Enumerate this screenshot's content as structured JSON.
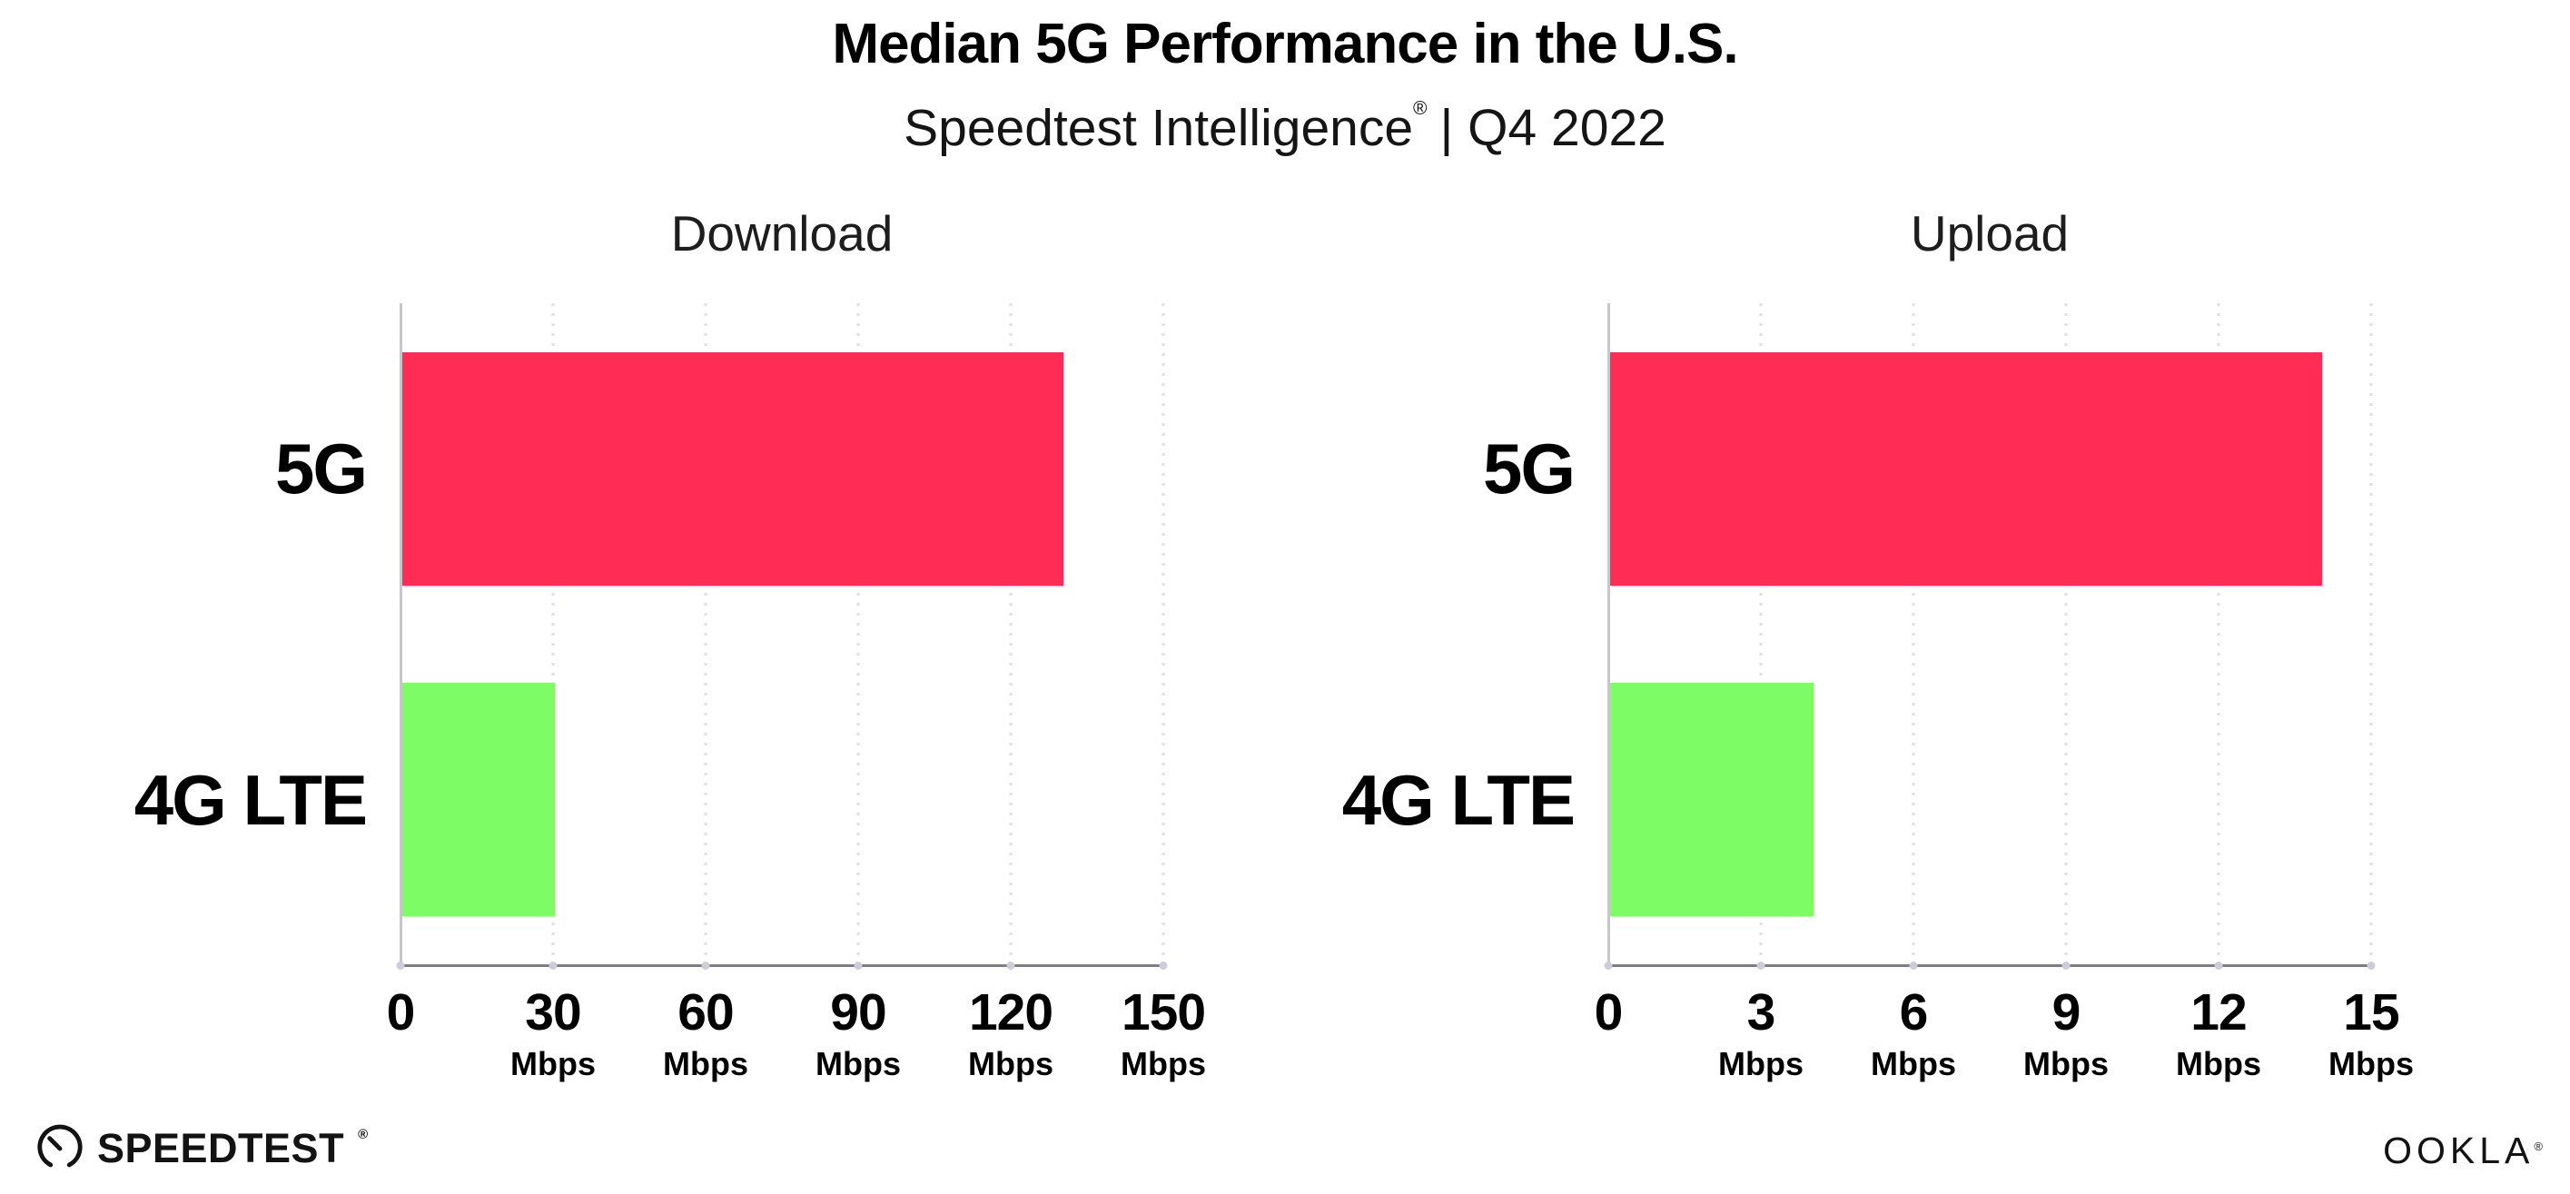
{
  "header": {
    "title": "Median 5G Performance in the U.S.",
    "subtitle": {
      "brand": "Speedtest Intelligence",
      "registered": "®",
      "rest": "| Q4 2022"
    }
  },
  "colors": {
    "bar_5g": "#FF2D55",
    "bar_4g_lte": "#7DFC66",
    "gridline": "#DEDEE8",
    "axis_line": "#7E7E82",
    "spine": "#C7C7CB",
    "axis_tick_dot": "#CCCCDA",
    "text": "#000000"
  },
  "chart_data": [
    {
      "type": "bar",
      "orientation": "horizontal",
      "title": "Download",
      "categories": [
        "5G",
        "4G LTE"
      ],
      "values": [
        130,
        30
      ],
      "unit": "Mbps",
      "xlim": [
        0,
        150
      ],
      "xticks": [
        {
          "value": 0,
          "label": "0",
          "unit": ""
        },
        {
          "value": 30,
          "label": "30",
          "unit": "Mbps"
        },
        {
          "value": 60,
          "label": "60",
          "unit": "Mbps"
        },
        {
          "value": 90,
          "label": "90",
          "unit": "Mbps"
        },
        {
          "value": 120,
          "label": "120",
          "unit": "Mbps"
        },
        {
          "value": 150,
          "label": "150",
          "unit": "Mbps"
        }
      ],
      "bar_colors": [
        "#FF2D55",
        "#7DFC66"
      ],
      "grid": "vertical-dotted",
      "legend": "none"
    },
    {
      "type": "bar",
      "orientation": "horizontal",
      "title": "Upload",
      "categories": [
        "5G",
        "4G LTE"
      ],
      "values": [
        14,
        4
      ],
      "unit": "Mbps",
      "xlim": [
        0,
        15
      ],
      "xticks": [
        {
          "value": 0,
          "label": "0",
          "unit": ""
        },
        {
          "value": 3,
          "label": "3",
          "unit": "Mbps"
        },
        {
          "value": 6,
          "label": "6",
          "unit": "Mbps"
        },
        {
          "value": 9,
          "label": "9",
          "unit": "Mbps"
        },
        {
          "value": 12,
          "label": "12",
          "unit": "Mbps"
        },
        {
          "value": 15,
          "label": "15",
          "unit": "Mbps"
        }
      ],
      "bar_colors": [
        "#FF2D55",
        "#7DFC66"
      ],
      "grid": "vertical-dotted",
      "legend": "none"
    }
  ],
  "footer": {
    "speedtest_label": "SPEEDTEST",
    "speedtest_mark": "®",
    "ookla_label": "OOKLA",
    "ookla_mark": "®"
  }
}
